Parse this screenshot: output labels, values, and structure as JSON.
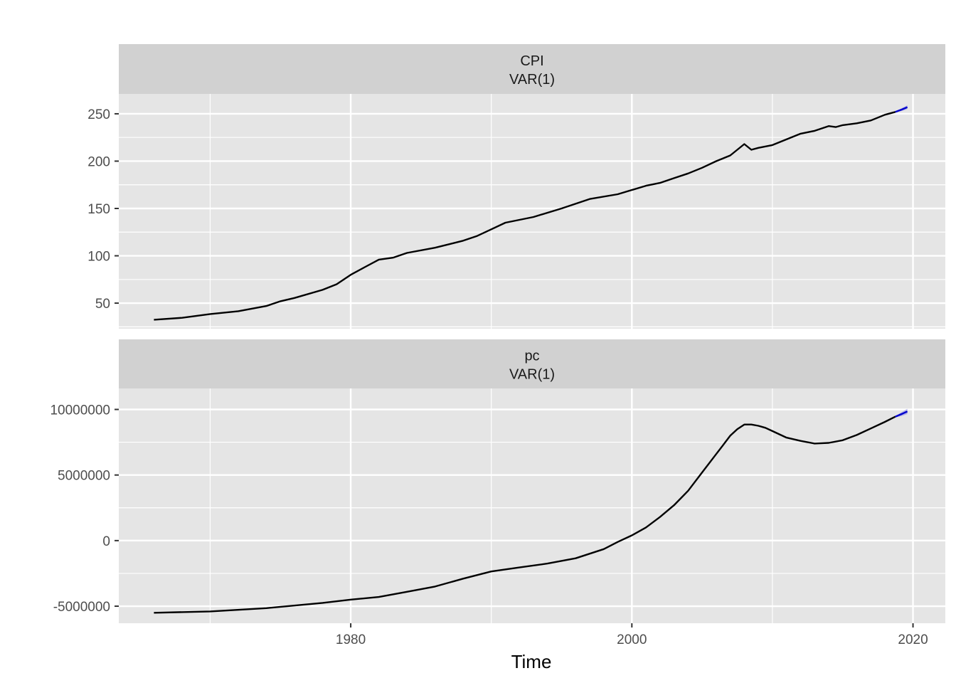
{
  "chart_data": {
    "type": "line",
    "xlabel": "Time",
    "x_ticks": [
      1980,
      2000,
      2020
    ],
    "x_range": [
      1963.5,
      2022.3
    ],
    "colors": {
      "panel_bg": "#e5e5e5",
      "strip_bg": "#d1d1d1",
      "grid": "#ffffff",
      "history_line": "#000000",
      "forecast_line": "#0000cc",
      "forecast_band": "#8a8ae6"
    },
    "facets": [
      {
        "strip": [
          "CPI",
          "VAR(1)"
        ],
        "y_ticks": [
          50,
          100,
          150,
          200,
          250
        ],
        "y_tick_labels": [
          "50",
          "100",
          "150",
          "200",
          "250"
        ],
        "y_range": [
          23,
          271
        ],
        "series": [
          {
            "x": [
              1966.0,
              1968.0,
              1970.0,
              1972.0,
              1974.0,
              1975.0,
              1976.0,
              1978.0,
              1979.0,
              1980.0,
              1981.0,
              1982.0,
              1983.0,
              1984.0,
              1986.0,
              1988.0,
              1989.0,
              1990.0,
              1991.0,
              1993.0,
              1995.0,
              1997.0,
              1999.0,
              2001.0,
              2002.0,
              2003.0,
              2004.0,
              2005.0,
              2006.0,
              2007.0,
              2008.0,
              2008.5,
              2009.0,
              2010.0,
              2011.0,
              2012.0,
              2013.0,
              2014.0,
              2014.5,
              2015.0,
              2016.0,
              2017.0,
              2018.0,
              2018.75
            ],
            "values": [
              32.5,
              34.5,
              38.5,
              41.5,
              47,
              52,
              55.5,
              64,
              70,
              80,
              88,
              96,
              98,
              103,
              108.5,
              116,
              121,
              128,
              135,
              141,
              150,
              160,
              165,
              174,
              177,
              182,
              187,
              193,
              200,
              206,
              218,
              212,
              214,
              217,
              223,
              229,
              232,
              237,
              236,
              238,
              240,
              243,
              249,
              252
            ]
          }
        ],
        "forecast": {
          "x": [
            2018.75,
            2019.2,
            2019.6
          ],
          "values": [
            252,
            254.5,
            257
          ],
          "lower": [
            251.5,
            253,
            255
          ],
          "upper": [
            252.5,
            256,
            259
          ]
        }
      },
      {
        "strip": [
          "pc",
          "VAR(1)"
        ],
        "y_ticks": [
          -5000000,
          0,
          5000000,
          10000000
        ],
        "y_tick_labels": [
          "-5000000",
          "0",
          "5000000",
          "10000000"
        ],
        "y_range": [
          -6300000,
          11600000
        ],
        "series": [
          {
            "x": [
              1966.0,
              1970.0,
              1974.0,
              1978.0,
              1980.0,
              1982.0,
              1984.0,
              1986.0,
              1988.0,
              1990.0,
              1992.0,
              1994.0,
              1996.0,
              1998.0,
              1999.0,
              2000.0,
              2001.0,
              2002.0,
              2003.0,
              2004.0,
              2005.0,
              2006.0,
              2006.5,
              2007.0,
              2007.5,
              2008.0,
              2008.5,
              2009.0,
              2009.5,
              2010.0,
              2010.5,
              2011.0,
              2012.0,
              2013.0,
              2014.0,
              2015.0,
              2016.0,
              2017.0,
              2018.0,
              2018.75
            ],
            "values": [
              -5500000,
              -5400000,
              -5150000,
              -4750000,
              -4500000,
              -4300000,
              -3900000,
              -3500000,
              -2900000,
              -2350000,
              -2050000,
              -1750000,
              -1350000,
              -650000,
              -100000,
              400000,
              1000000,
              1800000,
              2700000,
              3800000,
              5200000,
              6600000,
              7300000,
              8000000,
              8500000,
              8850000,
              8850000,
              8750000,
              8600000,
              8350000,
              8100000,
              7850000,
              7600000,
              7400000,
              7450000,
              7650000,
              8050000,
              8550000,
              9050000,
              9450000
            ]
          }
        ],
        "forecast": {
          "x": [
            2018.75,
            2019.2,
            2019.6
          ],
          "values": [
            9450000,
            9650000,
            9850000
          ],
          "lower": [
            9400000,
            9500000,
            9650000
          ],
          "upper": [
            9500000,
            9800000,
            10050000
          ]
        }
      }
    ]
  }
}
